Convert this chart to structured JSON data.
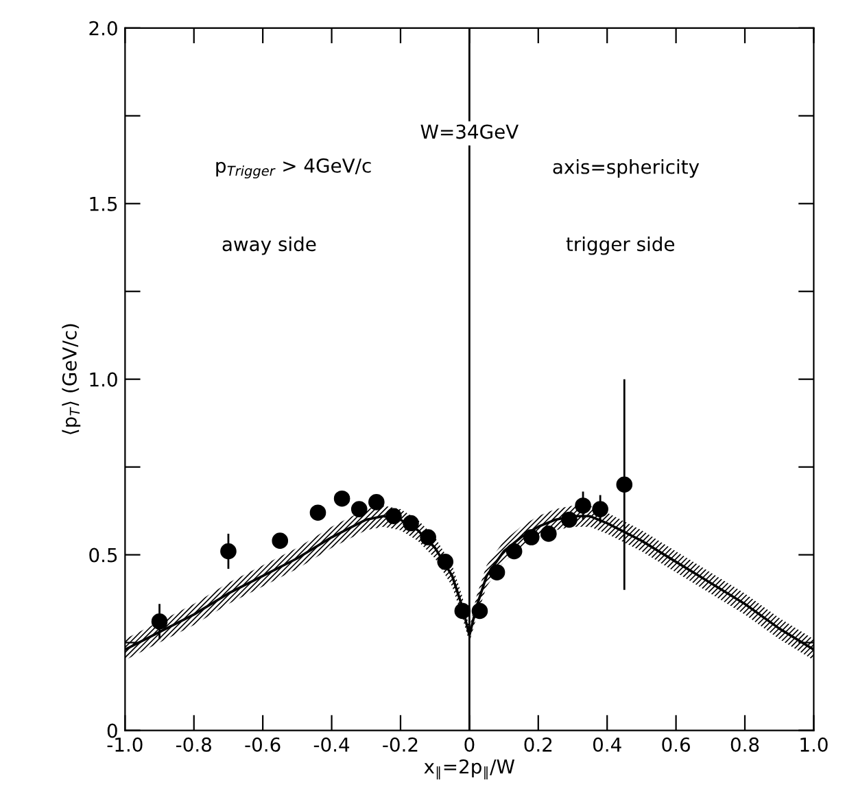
{
  "chart_data": {
    "type": "scatter",
    "xlabel": "x$_{∥}$=2p$_{∥}$/W",
    "ylabel": "⟨p$_{T}$⟩ (GeV/c)",
    "annotations": [
      "W=34GeV",
      "p$_{Trigger}$ > 4GeV/c",
      "axis=sphericity",
      "away side",
      "trigger side"
    ],
    "xlim": [
      -1.0,
      1.0
    ],
    "ylim": [
      0,
      2.0
    ],
    "xticks": [
      {
        "value": -1.0,
        "label": "-1.0"
      },
      {
        "value": -0.8,
        "label": "-0.8"
      },
      {
        "value": -0.6,
        "label": "-0.6"
      },
      {
        "value": -0.4,
        "label": "-0.4"
      },
      {
        "value": -0.2,
        "label": "-0.2"
      },
      0,
      0.2,
      0.4,
      0.6,
      0.8,
      {
        "value": 1.0,
        "label": "1.0"
      }
    ],
    "yticks": [
      0,
      {
        "value": 0.25,
        "label": null
      },
      0.5,
      {
        "value": 0.75,
        "label": null
      },
      {
        "value": 1.0,
        "label": "1.0"
      },
      {
        "value": 1.25,
        "label": null
      },
      1.5,
      {
        "value": 1.75,
        "label": null
      },
      {
        "value": 2.0,
        "label": "2.0"
      }
    ],
    "grid": false,
    "legend": false,
    "marker": "circle",
    "ref_lines": [
      {
        "axis": "x",
        "value": 0,
        "color": "#000000"
      }
    ],
    "series": [
      {
        "type": "line",
        "color": "#000000",
        "line_style": "solid",
        "marker": "none",
        "x": [
          -1.0,
          -0.9,
          -0.8,
          -0.7,
          -0.6,
          -0.5,
          -0.4,
          -0.3,
          -0.25,
          -0.2,
          -0.15,
          -0.1,
          -0.05,
          -0.02,
          0,
          0.02,
          0.05,
          0.1,
          0.15,
          0.2,
          0.25,
          0.3,
          0.35,
          0.4,
          0.5,
          0.6,
          0.7,
          0.8,
          0.9,
          1.0
        ],
        "values": [
          0.23,
          0.28,
          0.33,
          0.39,
          0.44,
          0.49,
          0.55,
          0.6,
          0.61,
          0.6,
          0.57,
          0.52,
          0.44,
          0.35,
          0.27,
          0.35,
          0.44,
          0.51,
          0.55,
          0.58,
          0.6,
          0.61,
          0.61,
          0.59,
          0.54,
          0.48,
          0.42,
          0.36,
          0.29,
          0.23
        ],
        "lower": [
          0.2,
          0.25,
          0.3,
          0.36,
          0.41,
          0.46,
          0.52,
          0.57,
          0.58,
          0.57,
          0.54,
          0.49,
          0.41,
          0.32,
          0.25,
          0.32,
          0.41,
          0.48,
          0.52,
          0.55,
          0.57,
          0.58,
          0.58,
          0.56,
          0.51,
          0.45,
          0.39,
          0.33,
          0.26,
          0.2
        ],
        "upper": [
          0.26,
          0.31,
          0.36,
          0.42,
          0.47,
          0.52,
          0.58,
          0.63,
          0.64,
          0.63,
          0.6,
          0.55,
          0.47,
          0.38,
          0.29,
          0.38,
          0.47,
          0.54,
          0.58,
          0.61,
          0.63,
          0.64,
          0.64,
          0.62,
          0.57,
          0.51,
          0.45,
          0.39,
          0.32,
          0.26
        ]
      },
      {
        "color": "#000000",
        "x": [
          -0.9,
          -0.7,
          -0.55,
          -0.44,
          -0.37,
          -0.32,
          -0.27,
          -0.22,
          -0.17,
          -0.12,
          -0.07,
          -0.02,
          0.03,
          0.08,
          0.13,
          0.18,
          0.23,
          0.29,
          0.33,
          0.38,
          0.45
        ],
        "values": [
          0.31,
          0.51,
          0.54,
          0.62,
          0.66,
          0.63,
          0.65,
          0.61,
          0.59,
          0.55,
          0.48,
          0.34,
          0.34,
          0.45,
          0.51,
          0.55,
          0.56,
          0.6,
          0.64,
          0.63,
          0.7
        ],
        "errors": [
          0.05,
          0.05,
          null,
          null,
          null,
          null,
          null,
          null,
          null,
          null,
          null,
          null,
          null,
          null,
          null,
          null,
          null,
          null,
          0.04,
          0.04,
          0.3
        ]
      }
    ]
  }
}
